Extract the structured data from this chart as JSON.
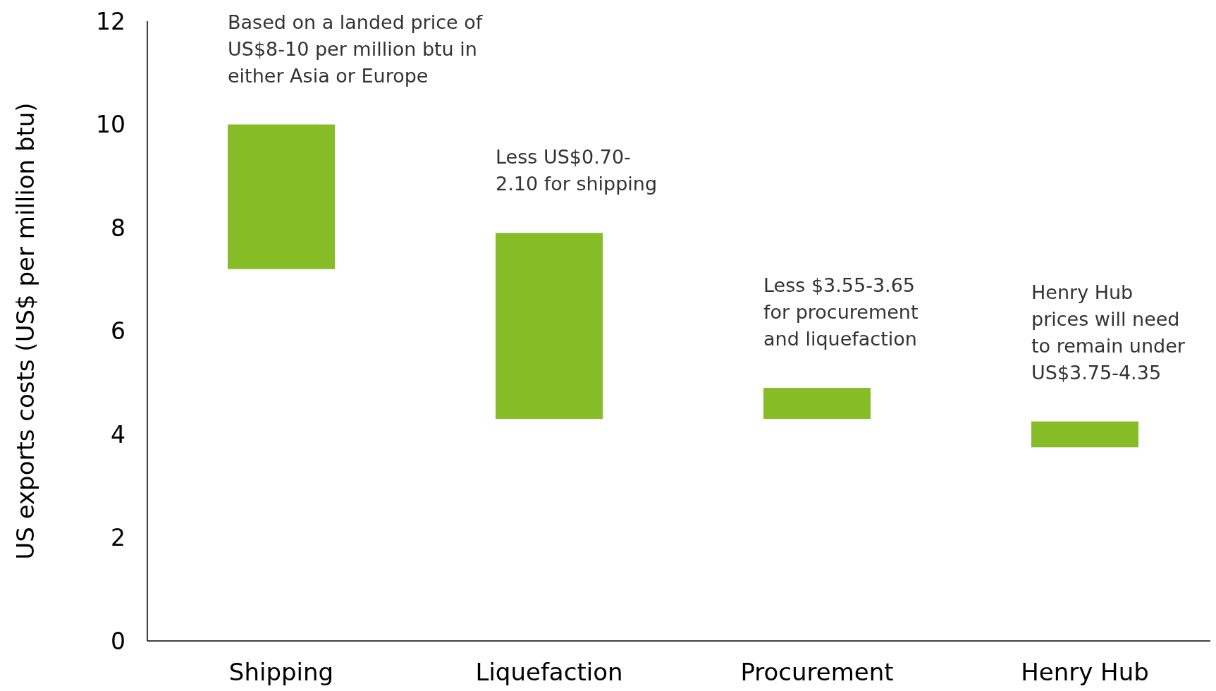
{
  "chart_data": {
    "type": "bar",
    "ylabel": "US exports costs (US$ per million btu)",
    "categories": [
      "Shipping",
      "Liquefaction",
      "Procurement",
      "Henry Hub"
    ],
    "base": [
      7.2,
      4.3,
      4.3,
      3.75
    ],
    "values": [
      2.8,
      3.6,
      0.6,
      0.5
    ],
    "color": "#86bc25",
    "ylim": [
      0,
      12
    ],
    "yticks": [
      0,
      2,
      4,
      6,
      8,
      10,
      12
    ],
    "annotations": [
      "Based on a landed price of\nUS$8-10 per million btu in\neither Asia or Europe",
      "Less US$0.70-\n2.10 for shipping",
      "Less $3.55-3.65\nfor procurement\nand liquefaction",
      "Henry Hub\nprices will need\nto remain under\nUS$3.75-4.35"
    ]
  }
}
